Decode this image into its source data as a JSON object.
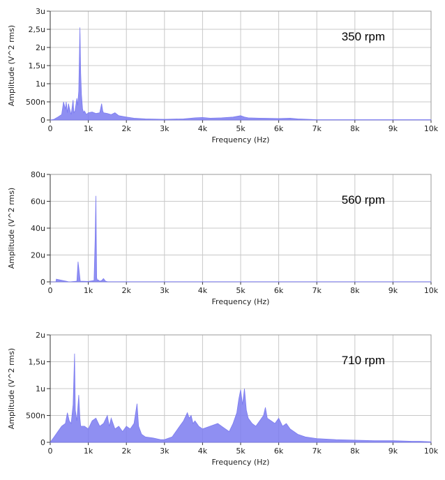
{
  "chart_data": [
    {
      "type": "area",
      "annotation": "350 rpm",
      "xlabel": "Frequency (Hz)",
      "ylabel": "Amplitude (V^2 rms)",
      "xlim": [
        0,
        10000
      ],
      "ylim": [
        0,
        3
      ],
      "x_tick_labels": [
        "0",
        "1k",
        "2k",
        "3k",
        "4k",
        "5k",
        "6k",
        "7k",
        "8k",
        "9k",
        "10k"
      ],
      "y_ticks": [
        0,
        0.5,
        1,
        1.5,
        2,
        2.5,
        3
      ],
      "y_tick_labels": [
        "0",
        "500n",
        "1u",
        "1,5u",
        "2u",
        "2,5u",
        "3u"
      ],
      "grid": true,
      "color": "#7b7bf0",
      "series": [
        {
          "x": [
            0,
            100,
            150,
            200,
            300,
            350,
            400,
            420,
            450,
            480,
            500,
            550,
            600,
            620,
            650,
            700,
            720,
            750,
            780,
            800,
            820,
            850,
            880,
            900,
            950,
            1000,
            1100,
            1200,
            1300,
            1350,
            1380,
            1400,
            1500,
            1600,
            1700,
            1800,
            1900,
            2000,
            2200,
            2500,
            3000,
            3500,
            3800,
            4000,
            4200,
            4500,
            4800,
            4900,
            5000,
            5050,
            5100,
            5200,
            5500,
            6000,
            6300,
            6500,
            7000,
            8000,
            9000,
            10000
          ],
          "y": [
            0,
            0.02,
            0.05,
            0.08,
            0.15,
            0.5,
            0.3,
            0.5,
            0.2,
            0.45,
            0.35,
            0.15,
            0.55,
            0.2,
            0.25,
            0.6,
            0.4,
            0.8,
            2.55,
            1.3,
            0.7,
            0.3,
            0.2,
            0.25,
            0.15,
            0.2,
            0.22,
            0.18,
            0.2,
            0.45,
            0.25,
            0.2,
            0.18,
            0.15,
            0.2,
            0.12,
            0.1,
            0.08,
            0.05,
            0.03,
            0.02,
            0.03,
            0.06,
            0.07,
            0.05,
            0.06,
            0.08,
            0.1,
            0.12,
            0.1,
            0.08,
            0.06,
            0.05,
            0.04,
            0.05,
            0.03,
            0.01,
            0.01,
            0.01,
            0.01
          ]
        }
      ]
    },
    {
      "type": "area",
      "annotation": "560 rpm",
      "xlabel": "Frequency (Hz)",
      "ylabel": "Amplitude (V^2 rms)",
      "xlim": [
        0,
        10000
      ],
      "ylim": [
        0,
        80
      ],
      "x_tick_labels": [
        "0",
        "1k",
        "2k",
        "3k",
        "4k",
        "5k",
        "6k",
        "7k",
        "8k",
        "9k",
        "10k"
      ],
      "y_ticks": [
        0,
        20,
        40,
        60,
        80
      ],
      "y_tick_labels": [
        "0",
        "20u",
        "40u",
        "60u",
        "80u"
      ],
      "grid": true,
      "color": "#7b7bf0",
      "series": [
        {
          "x": [
            0,
            150,
            160,
            500,
            700,
            730,
            760,
            790,
            1000,
            1150,
            1180,
            1200,
            1220,
            1240,
            1260,
            1300,
            1350,
            1400,
            1450,
            1500,
            2000,
            3000,
            5000,
            10000
          ],
          "y": [
            0,
            0,
            2,
            0,
            0.5,
            15,
            8,
            0.5,
            0.3,
            1,
            32,
            64,
            3,
            1,
            1.5,
            0.5,
            1,
            2.5,
            0.5,
            0.2,
            0.1,
            0.1,
            0.1,
            0.1
          ]
        }
      ]
    },
    {
      "type": "area",
      "annotation": "710 rpm",
      "xlabel": "Frequency (Hz)",
      "ylabel": "Amplitude (V^2 rms)",
      "xlim": [
        0,
        10000
      ],
      "ylim": [
        0,
        2
      ],
      "x_tick_labels": [
        "0",
        "1k",
        "2k",
        "3k",
        "4k",
        "5k",
        "6k",
        "7k",
        "8k",
        "9k",
        "10k"
      ],
      "y_ticks": [
        0,
        0.5,
        1,
        1.5,
        2
      ],
      "y_tick_labels": [
        "0",
        "500n",
        "1u",
        "1,5u",
        "2u"
      ],
      "grid": true,
      "color": "#7b7bf0",
      "series": [
        {
          "x": [
            0,
            100,
            200,
            300,
            400,
            450,
            500,
            550,
            600,
            640,
            660,
            680,
            700,
            750,
            780,
            800,
            900,
            1000,
            1100,
            1200,
            1300,
            1400,
            1500,
            1550,
            1600,
            1700,
            1800,
            1900,
            2000,
            2100,
            2200,
            2280,
            2320,
            2400,
            2500,
            2700,
            2900,
            3000,
            3200,
            3400,
            3500,
            3600,
            3650,
            3700,
            3750,
            3800,
            3900,
            4000,
            4200,
            4400,
            4500,
            4600,
            4700,
            4800,
            4900,
            4950,
            5000,
            5050,
            5100,
            5150,
            5200,
            5300,
            5400,
            5500,
            5600,
            5650,
            5700,
            5800,
            5900,
            6000,
            6100,
            6200,
            6300,
            6400,
            6500,
            6700,
            7000,
            7500,
            8000,
            8500,
            9000,
            9500,
            9700,
            10000
          ],
          "y": [
            0,
            0.1,
            0.2,
            0.3,
            0.35,
            0.55,
            0.4,
            0.35,
            0.7,
            1.65,
            0.6,
            0.5,
            0.4,
            0.88,
            0.45,
            0.3,
            0.3,
            0.25,
            0.4,
            0.45,
            0.3,
            0.35,
            0.5,
            0.3,
            0.45,
            0.25,
            0.3,
            0.2,
            0.3,
            0.25,
            0.35,
            0.72,
            0.3,
            0.15,
            0.1,
            0.08,
            0.05,
            0.05,
            0.1,
            0.3,
            0.4,
            0.55,
            0.45,
            0.5,
            0.35,
            0.4,
            0.3,
            0.25,
            0.3,
            0.35,
            0.3,
            0.25,
            0.2,
            0.35,
            0.55,
            0.8,
            0.98,
            0.7,
            1.0,
            0.6,
            0.45,
            0.35,
            0.3,
            0.4,
            0.5,
            0.65,
            0.45,
            0.4,
            0.35,
            0.45,
            0.3,
            0.35,
            0.25,
            0.2,
            0.15,
            0.1,
            0.07,
            0.05,
            0.04,
            0.03,
            0.03,
            0.02,
            0.02,
            0.01
          ]
        }
      ]
    }
  ]
}
